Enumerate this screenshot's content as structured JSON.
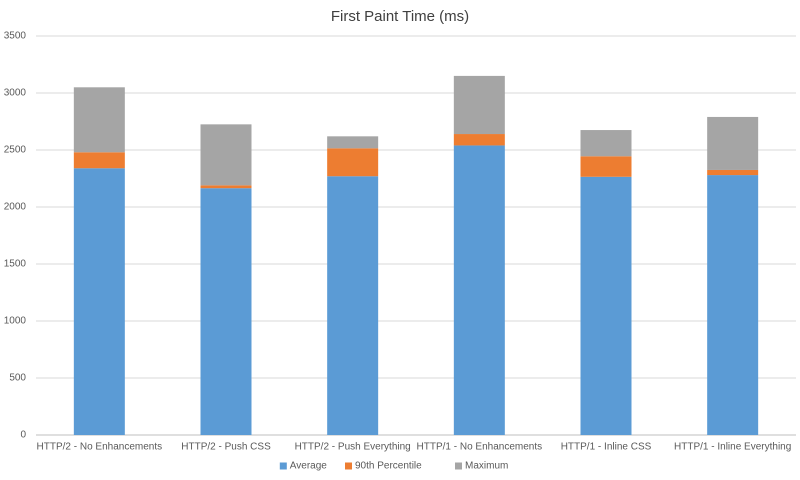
{
  "chart_data": {
    "type": "bar",
    "stacked": true,
    "title": "First Paint Time (ms)",
    "categories": [
      "HTTP/2 - No Enhancements",
      "HTTP/2 - Push CSS",
      "HTTP/2 - Push Everything",
      "HTTP/1 - No Enhancements",
      "HTTP/1 - Inline CSS",
      "HTTP/1 - Inline Everything"
    ],
    "series": [
      {
        "name": "Average",
        "color": "#5b9bd5",
        "values": [
          2340,
          2165,
          2270,
          2540,
          2265,
          2280
        ]
      },
      {
        "name": "90th Percentile",
        "color": "#ed7d31",
        "values": [
          140,
          25,
          245,
          100,
          180,
          45
        ]
      },
      {
        "name": "Maximum",
        "color": "#a5a5a5",
        "values": [
          570,
          535,
          105,
          510,
          230,
          465
        ]
      }
    ],
    "ylim": [
      0,
      3500
    ],
    "yticks": [
      0,
      500,
      1000,
      1500,
      2000,
      2500,
      3000,
      3500
    ],
    "grid": true,
    "legend": "bottom"
  }
}
